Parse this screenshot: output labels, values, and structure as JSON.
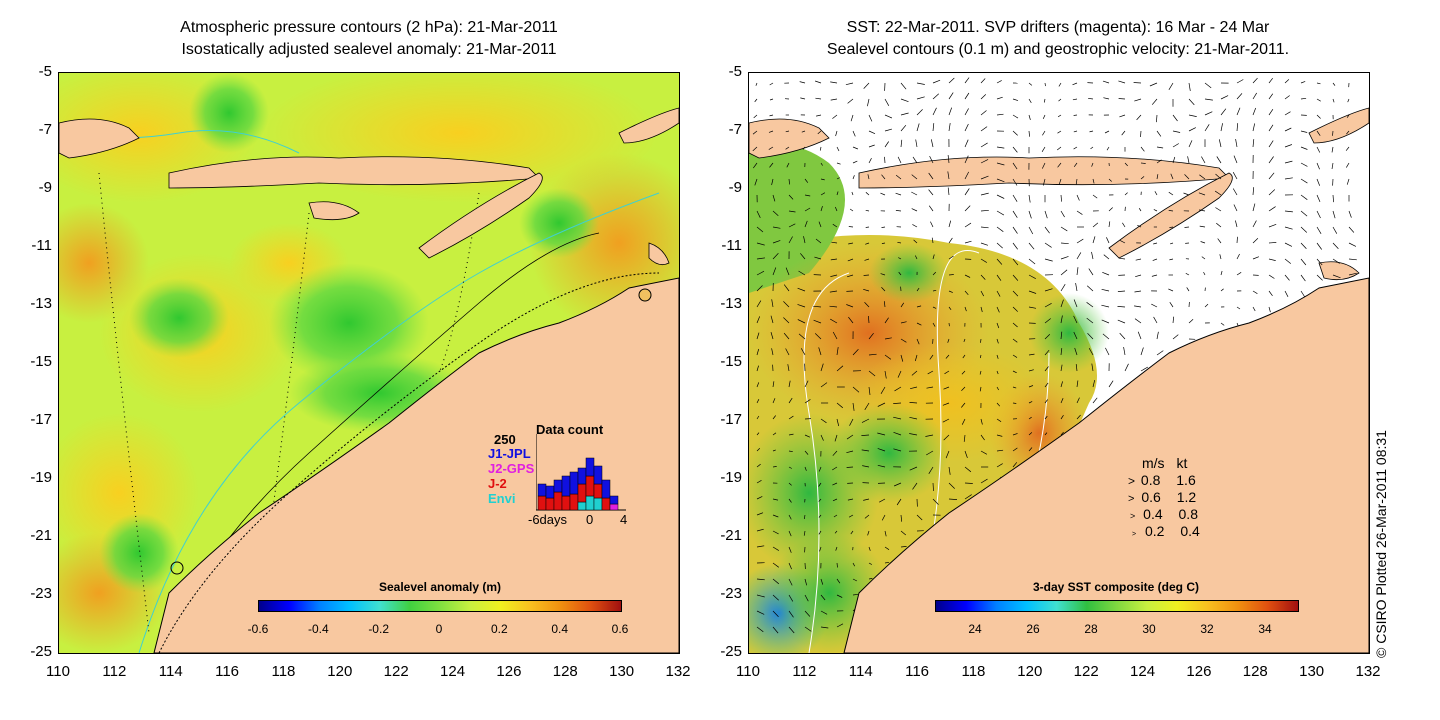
{
  "left_panel": {
    "title_line1": "Atmospheric pressure contours (2 hPa): 21-Mar-2011",
    "title_line2": "Isostatically adjusted sealevel anomaly: 21-Mar-2011",
    "colorbar_title": "Sealevel anomaly (m)",
    "colorbar_ticks": [
      "-0.6",
      "-0.4",
      "-0.2",
      "0",
      "0.2",
      "0.4",
      "0.6"
    ],
    "data_count": {
      "title": "Data count",
      "max_label": "250",
      "series": [
        {
          "name": "J1-JPL",
          "color": "#1010e0"
        },
        {
          "name": "J2-GPS",
          "color": "#e020e0"
        },
        {
          "name": "J-2",
          "color": "#e01010"
        },
        {
          "name": "Envi",
          "color": "#20d0d0"
        }
      ],
      "x_labels": [
        "-6days",
        "0",
        "4"
      ]
    }
  },
  "right_panel": {
    "title_line1": "SST: 22-Mar-2011. SVP drifters (magenta): 16 Mar - 24 Mar",
    "title_line2": "Sealevel contours (0.1 m) and geostrophic velocity: 21-Mar-2011.",
    "colorbar_title": "3-day SST composite (deg C)",
    "colorbar_ticks": [
      "24",
      "26",
      "28",
      "30",
      "32",
      "34"
    ],
    "scale_header_ms": "m/s",
    "scale_header_kt": "kt",
    "scale_rows": [
      {
        "ms": "0.8",
        "kt": "1.6"
      },
      {
        "ms": "0.6",
        "kt": "1.2"
      },
      {
        "ms": "0.4",
        "kt": "0.8"
      },
      {
        "ms": "0.2",
        "kt": "0.4"
      }
    ]
  },
  "y_ticks": [
    "-5",
    "-7",
    "-9",
    "-11",
    "-13",
    "-15",
    "-17",
    "-19",
    "-21",
    "-23",
    "-25"
  ],
  "x_ticks": [
    "110",
    "112",
    "114",
    "116",
    "118",
    "120",
    "122",
    "124",
    "126",
    "128",
    "130",
    "132"
  ],
  "copyright": "© CSIRO Plotted 26-Mar-2011 08:31",
  "colors": {
    "land": "#f8c8a0",
    "anomaly_base": "#c8f040",
    "coast": "#000000",
    "bathy": "#40d0d0"
  }
}
